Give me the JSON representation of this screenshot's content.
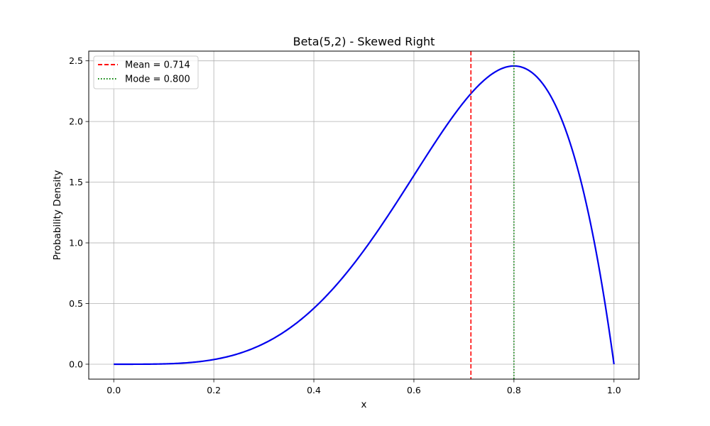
{
  "chart_data": {
    "type": "line",
    "title": "Beta(5,2) - Skewed Right",
    "xlabel": "x",
    "ylabel": "Probability Density",
    "xlim": [
      -0.05,
      1.05
    ],
    "ylim": [
      -0.123,
      2.58
    ],
    "xticks": [
      0.0,
      0.2,
      0.4,
      0.6,
      0.8,
      1.0
    ],
    "xtick_labels": [
      "0.0",
      "0.2",
      "0.4",
      "0.6",
      "0.8",
      "1.0"
    ],
    "yticks": [
      0.0,
      0.5,
      1.0,
      1.5,
      2.0,
      2.5
    ],
    "ytick_labels": [
      "0.0",
      "0.5",
      "1.0",
      "1.5",
      "2.0",
      "2.5"
    ],
    "grid": true,
    "legend_position": "top-left",
    "series": [
      {
        "kind": "pdf-curve",
        "color": "#0000ee",
        "x": [
          0.0,
          0.05,
          0.1,
          0.15,
          0.2,
          0.25,
          0.3,
          0.35,
          0.4,
          0.45,
          0.5,
          0.55,
          0.6,
          0.65,
          0.7,
          0.75,
          0.8,
          0.85,
          0.9,
          0.95,
          1.0
        ],
        "y": [
          0.0,
          0.0002,
          0.0027,
          0.0127,
          0.0384,
          0.0879,
          0.1701,
          0.2926,
          0.4608,
          0.6766,
          0.9375,
          1.2354,
          1.5552,
          1.8743,
          2.1609,
          2.373,
          2.4576,
          2.3488,
          1.9683,
          1.1282,
          0.0
        ]
      },
      {
        "kind": "vline",
        "name": "Mean = 0.714",
        "x": 0.714,
        "color": "#ff0000",
        "style": "dashed"
      },
      {
        "kind": "vline",
        "name": "Mode = 0.800",
        "x": 0.8,
        "color": "#008000",
        "style": "dotted"
      }
    ]
  }
}
